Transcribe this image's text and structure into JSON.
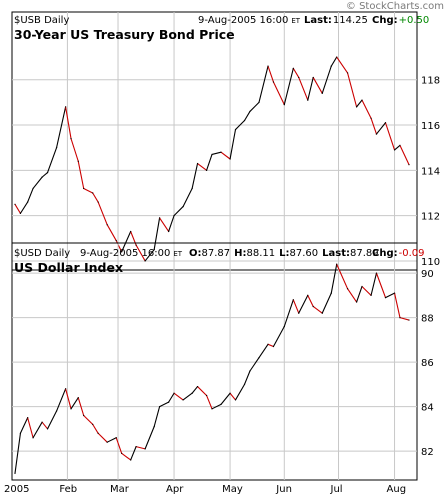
{
  "watermark": "© StockCharts.com",
  "chart_data": [
    {
      "type": "line",
      "symbol": "$USB Daily",
      "date": "9-Aug-2005 16:00",
      "tz": "ET",
      "last_label": "Last:",
      "last_value": "114.25",
      "chg_label": "Chg:",
      "chg_value": "+0.50",
      "chg_color": "#008800",
      "title": "30-Year US Treasury Bond Price",
      "ylim": [
        109.6,
        119.4
      ],
      "yticks": [
        110,
        112,
        114,
        116,
        118
      ],
      "x": [
        "2005-01-03",
        "2005-01-06",
        "2005-01-10",
        "2005-01-13",
        "2005-01-18",
        "2005-01-21",
        "2005-01-26",
        "2005-01-31",
        "2005-02-03",
        "2005-02-07",
        "2005-02-10",
        "2005-02-15",
        "2005-02-18",
        "2005-02-23",
        "2005-02-28",
        "2005-03-03",
        "2005-03-08",
        "2005-03-11",
        "2005-03-16",
        "2005-03-21",
        "2005-03-24",
        "2005-03-29",
        "2005-04-01",
        "2005-04-06",
        "2005-04-11",
        "2005-04-14",
        "2005-04-19",
        "2005-04-22",
        "2005-04-27",
        "2005-05-02",
        "2005-05-05",
        "2005-05-10",
        "2005-05-13",
        "2005-05-18",
        "2005-05-23",
        "2005-05-26",
        "2005-06-01",
        "2005-06-06",
        "2005-06-09",
        "2005-06-14",
        "2005-06-17",
        "2005-06-22",
        "2005-06-27",
        "2005-06-30",
        "2005-07-06",
        "2005-07-11",
        "2005-07-14",
        "2005-07-19",
        "2005-07-22",
        "2005-07-27",
        "2005-08-01",
        "2005-08-04",
        "2005-08-09"
      ],
      "values": [
        112.5,
        112.1,
        112.6,
        113.2,
        113.7,
        113.9,
        115.0,
        116.8,
        115.4,
        114.4,
        113.2,
        113.0,
        112.6,
        111.6,
        110.9,
        110.4,
        111.3,
        110.7,
        110.0,
        110.5,
        111.9,
        111.3,
        112.0,
        112.4,
        113.2,
        114.3,
        114.0,
        114.7,
        114.8,
        114.5,
        115.8,
        116.2,
        116.6,
        117.0,
        118.6,
        117.9,
        116.9,
        118.5,
        118.1,
        117.1,
        118.1,
        117.4,
        118.6,
        119.0,
        118.3,
        116.8,
        117.1,
        116.3,
        115.6,
        116.1,
        114.9,
        115.1,
        114.25
      ],
      "series": [
        {
          "name": "$USB",
          "color": "#cc0000"
        }
      ]
    },
    {
      "type": "line",
      "symbol": "$USD Daily",
      "date": "9-Aug-2005 16:00",
      "tz": "ET",
      "ohlc": [
        {
          "label": "O:",
          "value": "87.87"
        },
        {
          "label": "H:",
          "value": "88.11"
        },
        {
          "label": "L:",
          "value": "87.60"
        },
        {
          "label": "Last:",
          "value": "87.89"
        }
      ],
      "chg_label": "Chg:",
      "chg_value": "-0.09",
      "chg_color": "#cc0000",
      "title": "US Dollar Index",
      "ylim": [
        80.7,
        90.5
      ],
      "yticks": [
        82,
        84,
        86,
        88,
        90
      ],
      "x": [
        "2005-01-03",
        "2005-01-06",
        "2005-01-10",
        "2005-01-13",
        "2005-01-18",
        "2005-01-21",
        "2005-01-26",
        "2005-01-31",
        "2005-02-03",
        "2005-02-07",
        "2005-02-10",
        "2005-02-15",
        "2005-02-18",
        "2005-02-23",
        "2005-02-28",
        "2005-03-03",
        "2005-03-08",
        "2005-03-11",
        "2005-03-16",
        "2005-03-21",
        "2005-03-24",
        "2005-03-29",
        "2005-04-01",
        "2005-04-06",
        "2005-04-11",
        "2005-04-14",
        "2005-04-19",
        "2005-04-22",
        "2005-04-27",
        "2005-05-02",
        "2005-05-05",
        "2005-05-10",
        "2005-05-13",
        "2005-05-18",
        "2005-05-23",
        "2005-05-26",
        "2005-06-01",
        "2005-06-06",
        "2005-06-09",
        "2005-06-14",
        "2005-06-17",
        "2005-06-22",
        "2005-06-27",
        "2005-06-30",
        "2005-07-06",
        "2005-07-11",
        "2005-07-14",
        "2005-07-19",
        "2005-07-22",
        "2005-07-27",
        "2005-08-01",
        "2005-08-04",
        "2005-08-09"
      ],
      "values": [
        81.0,
        82.8,
        83.5,
        82.6,
        83.3,
        83.0,
        83.8,
        84.8,
        83.9,
        84.4,
        83.6,
        83.2,
        82.8,
        82.4,
        82.6,
        81.9,
        81.6,
        82.2,
        82.1,
        83.1,
        84.0,
        84.2,
        84.6,
        84.3,
        84.6,
        84.9,
        84.5,
        83.9,
        84.1,
        84.6,
        84.3,
        85.0,
        85.6,
        86.2,
        86.8,
        86.7,
        87.6,
        88.8,
        88.2,
        89.0,
        88.5,
        88.2,
        89.1,
        90.4,
        89.3,
        88.7,
        89.4,
        89.0,
        90.0,
        88.9,
        89.1,
        88.0,
        87.89
      ],
      "series": [
        {
          "name": "$USD",
          "color": "#cc0000"
        }
      ]
    }
  ],
  "xaxis": {
    "months": [
      "2005",
      "Feb",
      "Mar",
      "Apr",
      "May",
      "Jun",
      "Jul",
      "Aug"
    ],
    "month_dates": [
      "2005-01-03",
      "2005-02-01",
      "2005-03-01",
      "2005-04-01",
      "2005-05-02",
      "2005-06-01",
      "2005-07-01",
      "2005-08-01"
    ]
  }
}
